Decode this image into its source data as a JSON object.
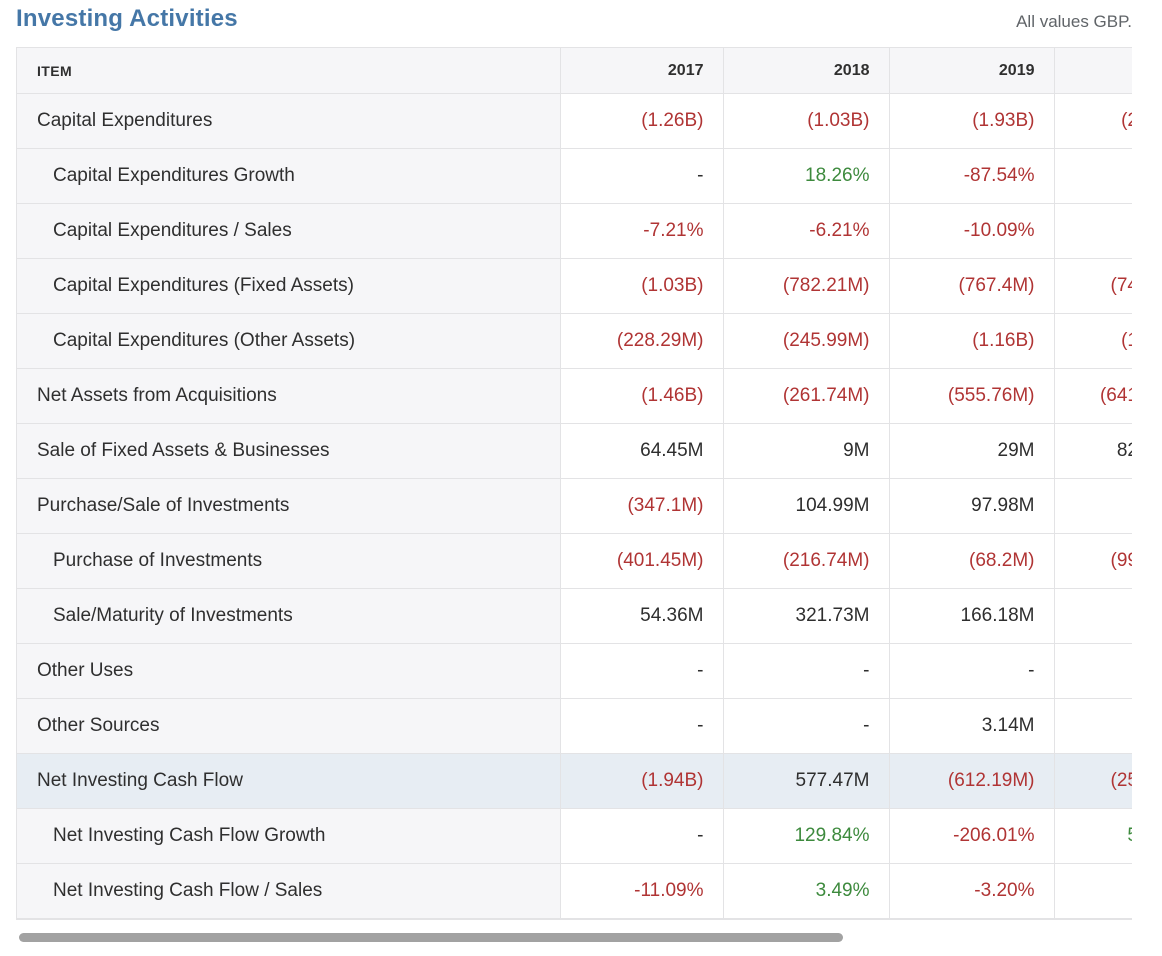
{
  "header": {
    "title": "Investing Activities",
    "units_note": "All values GBP."
  },
  "colors": {
    "title_blue": "#4577a7",
    "negative": "#b03434",
    "positive": "#3d8a3d",
    "neutral": "#2e2e2e",
    "label": "#2f2f2f",
    "highlight_bg": "#e7edf3",
    "item_column_bg": "#f6f6f8",
    "border": "#e3e3e5",
    "subtitle_gray": "#606468",
    "scrollbar_gray": "#a2a2a2"
  },
  "table": {
    "item_header": "ITEM",
    "year_headers": [
      "2017",
      "2018",
      "2019",
      ""
    ],
    "rows": [
      {
        "label": "Capital Expenditures",
        "indent": false,
        "highlight": false,
        "values": [
          {
            "t": "(1.26B)",
            "c": "negative"
          },
          {
            "t": "(1.03B)",
            "c": "negative"
          },
          {
            "t": "(1.93B)",
            "c": "negative"
          },
          {
            "t": "(2",
            "c": "negative"
          }
        ]
      },
      {
        "label": "Capital Expenditures Growth",
        "indent": true,
        "highlight": false,
        "values": [
          {
            "t": "-",
            "c": "neutral"
          },
          {
            "t": "18.26%",
            "c": "positive"
          },
          {
            "t": "-87.54%",
            "c": "negative"
          },
          {
            "t": "-",
            "c": "negative"
          }
        ]
      },
      {
        "label": "Capital Expenditures / Sales",
        "indent": true,
        "highlight": false,
        "values": [
          {
            "t": "-7.21%",
            "c": "negative"
          },
          {
            "t": "-6.21%",
            "c": "negative"
          },
          {
            "t": "-10.09%",
            "c": "negative"
          },
          {
            "t": "-",
            "c": "negative"
          }
        ]
      },
      {
        "label": "Capital Expenditures (Fixed Assets)",
        "indent": true,
        "highlight": false,
        "values": [
          {
            "t": "(1.03B)",
            "c": "negative"
          },
          {
            "t": "(782.21M)",
            "c": "negative"
          },
          {
            "t": "(767.4M)",
            "c": "negative"
          },
          {
            "t": "(74",
            "c": "negative"
          }
        ]
      },
      {
        "label": "Capital Expenditures (Other Assets)",
        "indent": true,
        "highlight": false,
        "values": [
          {
            "t": "(228.29M)",
            "c": "negative"
          },
          {
            "t": "(245.99M)",
            "c": "negative"
          },
          {
            "t": "(1.16B)",
            "c": "negative"
          },
          {
            "t": "(1",
            "c": "negative"
          }
        ]
      },
      {
        "label": "Net Assets from Acquisitions",
        "indent": false,
        "highlight": false,
        "values": [
          {
            "t": "(1.46B)",
            "c": "negative"
          },
          {
            "t": "(261.74M)",
            "c": "negative"
          },
          {
            "t": "(555.76M)",
            "c": "negative"
          },
          {
            "t": "(641",
            "c": "negative"
          }
        ]
      },
      {
        "label": "Sale of Fixed Assets & Businesses",
        "indent": false,
        "highlight": false,
        "values": [
          {
            "t": "64.45M",
            "c": "neutral"
          },
          {
            "t": "9M",
            "c": "neutral"
          },
          {
            "t": "29M",
            "c": "neutral"
          },
          {
            "t": "82",
            "c": "neutral"
          }
        ]
      },
      {
        "label": "Purchase/Sale of Investments",
        "indent": false,
        "highlight": false,
        "values": [
          {
            "t": "(347.1M)",
            "c": "negative"
          },
          {
            "t": "104.99M",
            "c": "neutral"
          },
          {
            "t": "97.98M",
            "c": "neutral"
          },
          {
            "t": "",
            "c": "neutral"
          }
        ]
      },
      {
        "label": "Purchase of Investments",
        "indent": true,
        "highlight": false,
        "values": [
          {
            "t": "(401.45M)",
            "c": "negative"
          },
          {
            "t": "(216.74M)",
            "c": "negative"
          },
          {
            "t": "(68.2M)",
            "c": "negative"
          },
          {
            "t": "(99",
            "c": "negative"
          }
        ]
      },
      {
        "label": "Sale/Maturity of Investments",
        "indent": true,
        "highlight": false,
        "values": [
          {
            "t": "54.36M",
            "c": "neutral"
          },
          {
            "t": "321.73M",
            "c": "neutral"
          },
          {
            "t": "166.18M",
            "c": "neutral"
          },
          {
            "t": "",
            "c": "neutral"
          }
        ]
      },
      {
        "label": "Other Uses",
        "indent": false,
        "highlight": false,
        "values": [
          {
            "t": "-",
            "c": "neutral"
          },
          {
            "t": "-",
            "c": "neutral"
          },
          {
            "t": "-",
            "c": "neutral"
          },
          {
            "t": "",
            "c": "neutral"
          }
        ]
      },
      {
        "label": "Other Sources",
        "indent": false,
        "highlight": false,
        "values": [
          {
            "t": "-",
            "c": "neutral"
          },
          {
            "t": "-",
            "c": "neutral"
          },
          {
            "t": "3.14M",
            "c": "neutral"
          },
          {
            "t": "",
            "c": "neutral"
          }
        ]
      },
      {
        "label": "Net Investing Cash Flow",
        "indent": false,
        "highlight": true,
        "values": [
          {
            "t": "(1.94B)",
            "c": "negative"
          },
          {
            "t": "577.47M",
            "c": "neutral"
          },
          {
            "t": "(612.19M)",
            "c": "negative"
          },
          {
            "t": "(25",
            "c": "negative"
          }
        ]
      },
      {
        "label": "Net Investing Cash Flow Growth",
        "indent": true,
        "highlight": false,
        "values": [
          {
            "t": "-",
            "c": "neutral"
          },
          {
            "t": "129.84%",
            "c": "positive"
          },
          {
            "t": "-206.01%",
            "c": "negative"
          },
          {
            "t": "5",
            "c": "positive"
          }
        ]
      },
      {
        "label": "Net Investing Cash Flow / Sales",
        "indent": true,
        "highlight": false,
        "values": [
          {
            "t": "-11.09%",
            "c": "negative"
          },
          {
            "t": "3.49%",
            "c": "positive"
          },
          {
            "t": "-3.20%",
            "c": "negative"
          },
          {
            "t": "-",
            "c": "negative"
          }
        ]
      }
    ]
  }
}
